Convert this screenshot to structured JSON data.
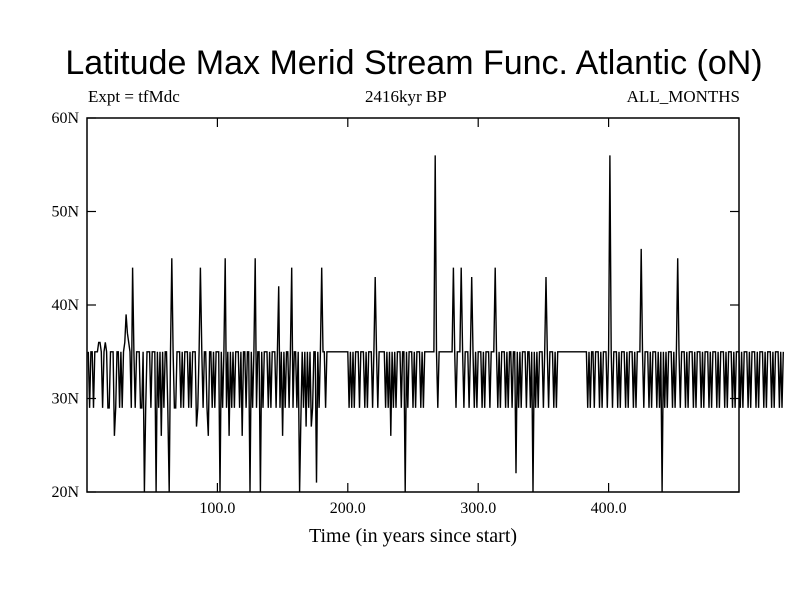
{
  "title": "Latitude Max Merid Stream Func. Atlantic (oN)",
  "subtitle_left": "Expt = tfMdc",
  "subtitle_center": "2416kyr BP",
  "subtitle_right": "ALL_MONTHS",
  "chart_data": {
    "type": "line",
    "title": "Latitude Max Merid Stream Func. Atlantic (oN)",
    "xlabel": "Time (in years since start)",
    "ylabel": "",
    "xlim": [
      0,
      500
    ],
    "ylim": [
      20,
      60
    ],
    "x_ticks": [
      100,
      200,
      300,
      400
    ],
    "x_tick_labels": [
      "100.0",
      "200.0",
      "300.0",
      "400.0"
    ],
    "y_ticks": [
      20,
      30,
      40,
      50,
      60
    ],
    "y_tick_labels": [
      "20N",
      "30N",
      "40N",
      "50N",
      "60N"
    ],
    "grid": false,
    "series": [
      {
        "name": "",
        "color": "#000000",
        "x_start": 1,
        "x_step": 1,
        "values": [
          35,
          29,
          35,
          35,
          29,
          35,
          35,
          35,
          36,
          36,
          35,
          29,
          35,
          36,
          35,
          29,
          29,
          35,
          35,
          35,
          26,
          29,
          35,
          35,
          29,
          35,
          29,
          35,
          36,
          39,
          37,
          36,
          35,
          29,
          44,
          35,
          29,
          35,
          35,
          35,
          29,
          29,
          35,
          20,
          29,
          35,
          35,
          35,
          29,
          35,
          35,
          35,
          20,
          35,
          29,
          35,
          26,
          35,
          29,
          35,
          35,
          29,
          20,
          35,
          45,
          35,
          29,
          29,
          35,
          35,
          35,
          29,
          35,
          29,
          35,
          35,
          35,
          29,
          35,
          29,
          35,
          35,
          35,
          27,
          29,
          35,
          44,
          35,
          29,
          35,
          35,
          29,
          26,
          35,
          35,
          29,
          35,
          29,
          35,
          35,
          35,
          20,
          35,
          29,
          35,
          45,
          29,
          35,
          26,
          35,
          29,
          35,
          29,
          35,
          35,
          35,
          29,
          35,
          26,
          35,
          35,
          29,
          35,
          35,
          20,
          35,
          29,
          35,
          45,
          29,
          35,
          35,
          20,
          35,
          29,
          35,
          35,
          35,
          29,
          35,
          29,
          35,
          35,
          35,
          29,
          35,
          42,
          29,
          35,
          26,
          35,
          29,
          35,
          35,
          29,
          35,
          44,
          29,
          35,
          35,
          29,
          35,
          20,
          28,
          35,
          29,
          35,
          27,
          35,
          29,
          35,
          27,
          29,
          35,
          35,
          21,
          35,
          29,
          35,
          44,
          35,
          35,
          29,
          35,
          35,
          35,
          35,
          35,
          35,
          35,
          35,
          35,
          35,
          35,
          35,
          35,
          35,
          35,
          35,
          35,
          29,
          35,
          29,
          35,
          29,
          35,
          35,
          35,
          29,
          35,
          35,
          35,
          29,
          35,
          29,
          35,
          35,
          35,
          29,
          35,
          43,
          35,
          29,
          35,
          35,
          35,
          35,
          35,
          29,
          35,
          29,
          35,
          26,
          35,
          29,
          35,
          29,
          35,
          35,
          35,
          29,
          35,
          35,
          20,
          35,
          29,
          35,
          35,
          35,
          29,
          35,
          29,
          35,
          35,
          35,
          29,
          35,
          29,
          35,
          35,
          35,
          35,
          35,
          35,
          35,
          35,
          56,
          35,
          29,
          35,
          35,
          35,
          35,
          35,
          35,
          35,
          35,
          35,
          35,
          35,
          44,
          35,
          29,
          35,
          35,
          35,
          44,
          35,
          29,
          35,
          35,
          35,
          29,
          35,
          43,
          35,
          29,
          35,
          29,
          35,
          35,
          35,
          29,
          35,
          29,
          35,
          35,
          35,
          29,
          35,
          35,
          35,
          44,
          35,
          29,
          35,
          29,
          35,
          35,
          35,
          29,
          35,
          29,
          35,
          35,
          29,
          35,
          35,
          22,
          35,
          29,
          35,
          29,
          35,
          35,
          35,
          29,
          35,
          35,
          29,
          35,
          20,
          35,
          29,
          35,
          29,
          35,
          35,
          35,
          29,
          35,
          43,
          35,
          29,
          35,
          35,
          35,
          29,
          35,
          29,
          35,
          35,
          35,
          35,
          35,
          35,
          35,
          35,
          35,
          35,
          35,
          35,
          35,
          35,
          35,
          35,
          35,
          35,
          35,
          35,
          35,
          35,
          35,
          29,
          35,
          29,
          35,
          35,
          29,
          35,
          35,
          35,
          29,
          35,
          29,
          35,
          35,
          35,
          29,
          35,
          56,
          35,
          29,
          35,
          35,
          35,
          29,
          35,
          29,
          35,
          35,
          35,
          29,
          35,
          29,
          35,
          35,
          35,
          29,
          35,
          29,
          35,
          35,
          35,
          46,
          35,
          29,
          35,
          35,
          35,
          29,
          35,
          29,
          35,
          35,
          35,
          29,
          35,
          29,
          35,
          20,
          35,
          29,
          35,
          29,
          35,
          35,
          35,
          29,
          35,
          29,
          35,
          45,
          35,
          29,
          35,
          35,
          35,
          29,
          35,
          29,
          35,
          35,
          35,
          29,
          35,
          29,
          35,
          35,
          35,
          29,
          35,
          29,
          35,
          35,
          35,
          29,
          35,
          29,
          35,
          35,
          35,
          29,
          35,
          29,
          35,
          35,
          35,
          29,
          35,
          29,
          35,
          35,
          35,
          29,
          35,
          29,
          35,
          35,
          35,
          29,
          35,
          29,
          35,
          35,
          35,
          29,
          35,
          29,
          35,
          35,
          35,
          29,
          35,
          29,
          35,
          35,
          35,
          29,
          35,
          29,
          35,
          35,
          35,
          29,
          35,
          29,
          35,
          35,
          35,
          29,
          35,
          29,
          35
        ]
      }
    ]
  }
}
